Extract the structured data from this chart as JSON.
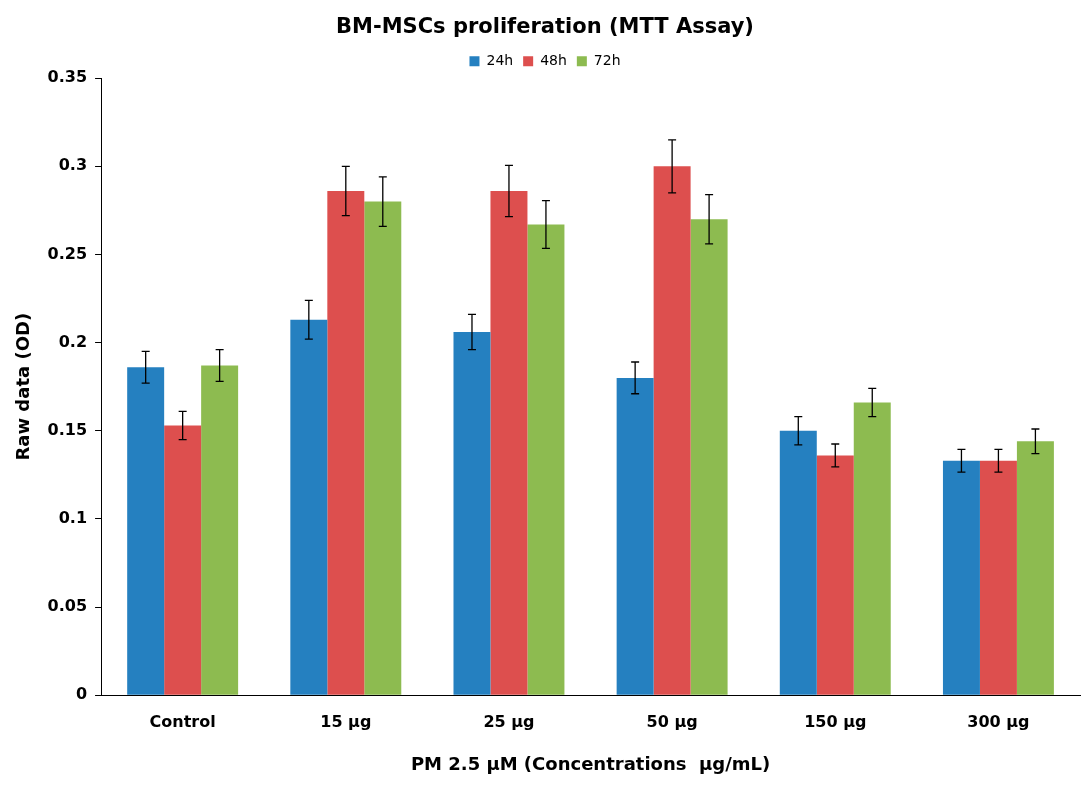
{
  "chart_data": {
    "type": "bar",
    "title": "BM-MSCs proliferation (MTT Assay)",
    "xlabel": "PM 2.5 µM (Concentrations  µg/mL)",
    "ylabel": "Raw data (OD)",
    "categories": [
      "Control",
      "15 µg",
      "25 µg",
      "50 µg",
      "150 µg",
      "300 µg"
    ],
    "series": [
      {
        "name": "24h",
        "color": "#2580c0",
        "values": [
          0.186,
          0.213,
          0.206,
          0.18,
          0.15,
          0.133
        ],
        "errors": [
          0.009,
          0.011,
          0.01,
          0.009,
          0.008,
          0.0065
        ]
      },
      {
        "name": "48h",
        "color": "#dd4f4e",
        "values": [
          0.153,
          0.286,
          0.286,
          0.3,
          0.136,
          0.133
        ],
        "errors": [
          0.008,
          0.014,
          0.0145,
          0.015,
          0.0065,
          0.0065
        ]
      },
      {
        "name": "72h",
        "color": "#8dbb50",
        "values": [
          0.187,
          0.28,
          0.267,
          0.27,
          0.166,
          0.144
        ],
        "errors": [
          0.009,
          0.014,
          0.0135,
          0.014,
          0.008,
          0.007
        ]
      }
    ],
    "ylim": [
      0,
      0.35
    ],
    "yticks": [
      0,
      0.05,
      0.1,
      0.15,
      0.2,
      0.25,
      0.3,
      0.35
    ],
    "grid": false,
    "legend": "top"
  }
}
